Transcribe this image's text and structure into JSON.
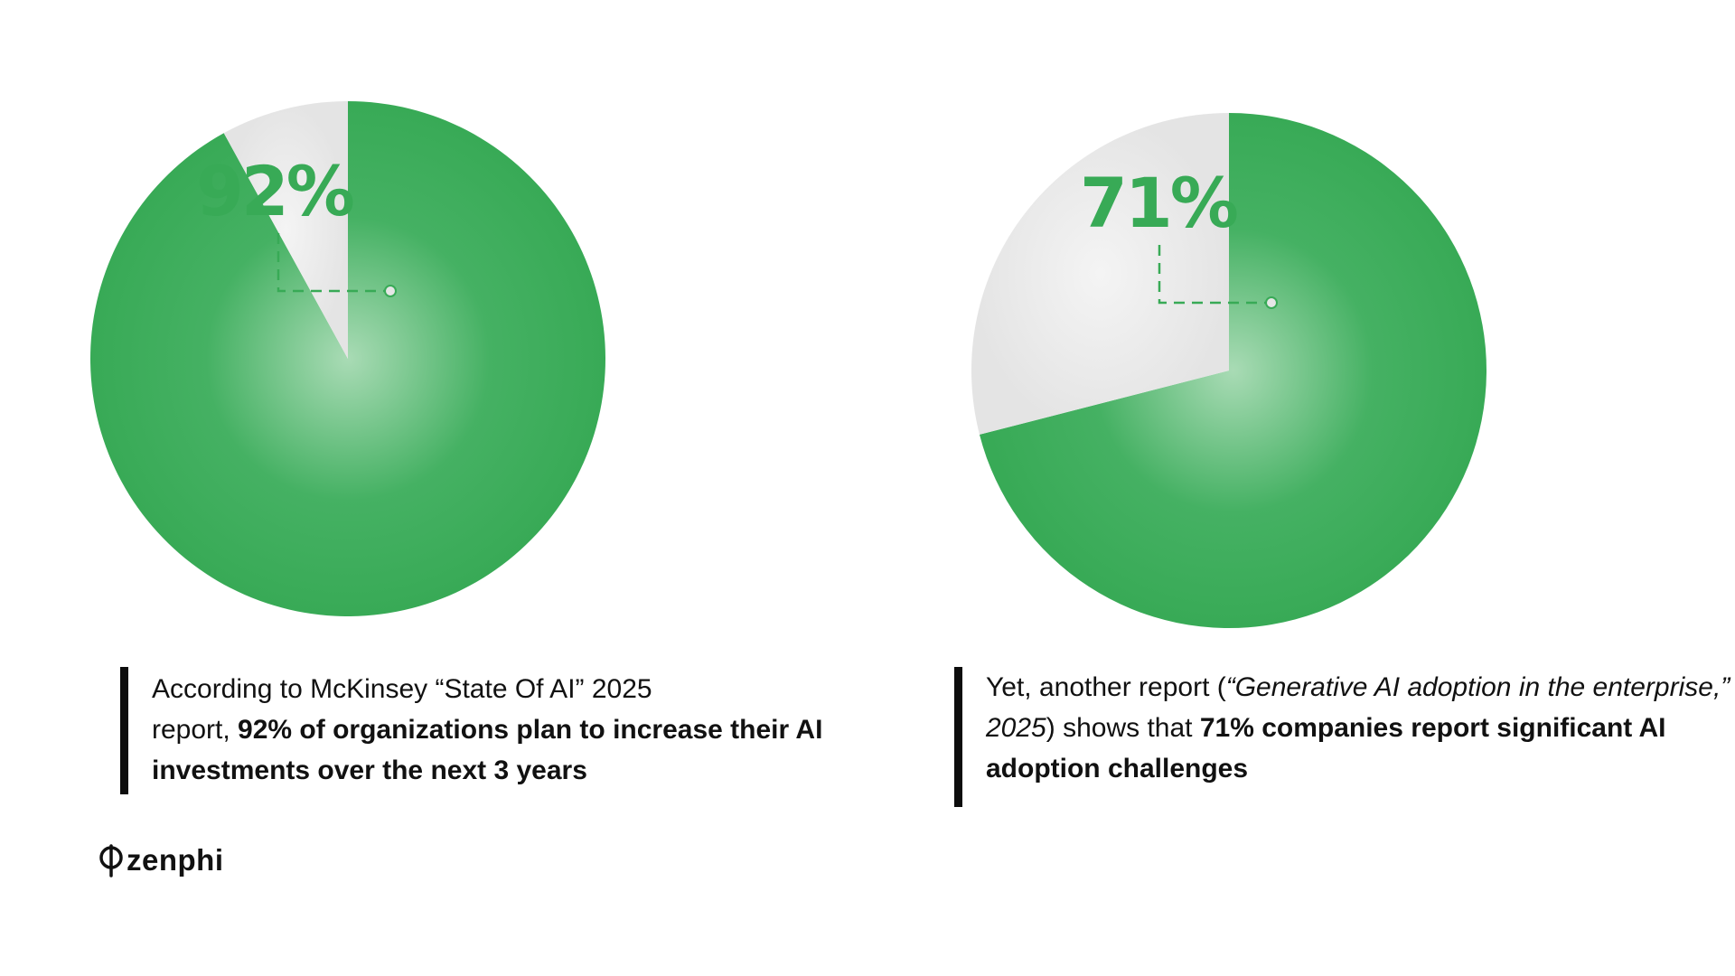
{
  "colors": {
    "accent": "#38aa56",
    "accent_center": "#a9dbb5",
    "remainder": "#e6e6e6",
    "text": "#111111",
    "bar": "#0d0d0d"
  },
  "chart_data": [
    {
      "type": "pie",
      "label": "92%",
      "slices": [
        {
          "value": 92,
          "color": "#38aa56"
        },
        {
          "value": 8,
          "color": "#e6e6e6"
        }
      ]
    },
    {
      "type": "pie",
      "label": "71%",
      "slices": [
        {
          "value": 71,
          "color": "#38aa56"
        },
        {
          "value": 29,
          "color": "#e6e6e6"
        }
      ]
    }
  ],
  "captions": {
    "left": {
      "line1": "According to McKinsey “State Of AI” 2025",
      "plain2": "report, ",
      "bold": "92% of organizations plan to increase their AI investments over the next 3 years"
    },
    "right": {
      "plain1": "Yet, another report (",
      "italic": "“Generative AI adoption in the enterprise,” 2025",
      "plain2": ") shows that ",
      "bold": "71% companies report significant AI adoption challenges"
    }
  },
  "brand": {
    "name": "zenphi",
    "icon": "phi-logo-icon"
  }
}
